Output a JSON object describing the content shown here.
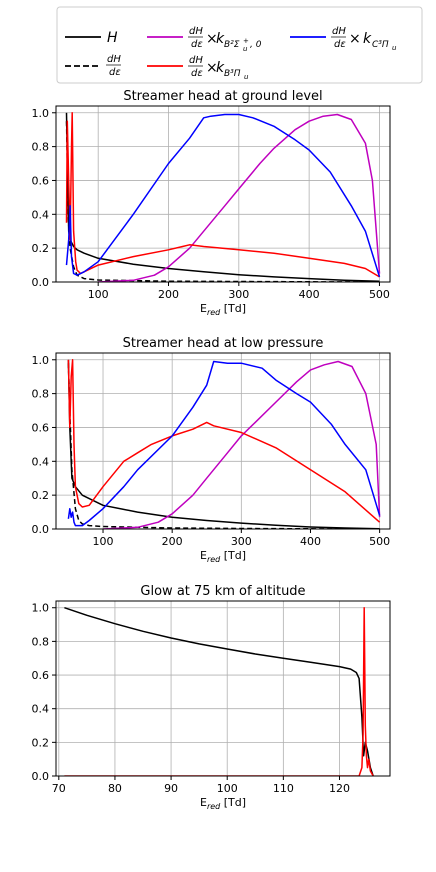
{
  "legend": {
    "entries": [
      {
        "label": "H",
        "color": "#000000",
        "dash": "solid"
      },
      {
        "label": "dH/dε",
        "color": "#000000",
        "dash": "dashed"
      },
      {
        "label": "dH/dε × k B²Σu⁺, 0",
        "color": "#bf00bf",
        "dash": "solid"
      },
      {
        "label": "dH/dε × k B³Πu",
        "color": "#ff0000",
        "dash": "solid"
      },
      {
        "label": "dH/dε × k C³Πu",
        "color": "#0000ff",
        "dash": "solid"
      }
    ]
  },
  "chart_data": [
    {
      "type": "line",
      "title": "Streamer head at ground level",
      "xlabel": "E_red [Td]",
      "ylabel": "",
      "xlim": [
        40,
        515
      ],
      "ylim": [
        0,
        1.04
      ],
      "xticks": [
        "100",
        "200",
        "300",
        "400",
        "500"
      ],
      "yticks": [
        "0.0",
        "0.2",
        "0.4",
        "0.6",
        "0.8",
        "1.0"
      ],
      "xtick_values": [
        100,
        200,
        300,
        400,
        500
      ],
      "ytick_values": [
        0,
        0.2,
        0.4,
        0.6,
        0.8,
        1.0
      ],
      "grid": true,
      "series": [
        {
          "name": "H",
          "color": "#000000",
          "dash": "solid",
          "x": [
            55,
            57,
            58,
            60,
            65,
            70,
            80,
            100,
            150,
            200,
            250,
            300,
            350,
            400,
            450,
            500
          ],
          "y": [
            1.0,
            0.5,
            0.3,
            0.25,
            0.21,
            0.19,
            0.17,
            0.14,
            0.105,
            0.08,
            0.06,
            0.043,
            0.03,
            0.02,
            0.01,
            0.004
          ]
        },
        {
          "name": "dH/dε",
          "color": "#000000",
          "dash": "dashed",
          "x": [
            55,
            56,
            57,
            60,
            65,
            70,
            80,
            100,
            150,
            200,
            300,
            400,
            500
          ],
          "y": [
            0.95,
            0.7,
            0.4,
            0.2,
            0.09,
            0.04,
            0.02,
            0.012,
            0.008,
            0.005,
            0.003,
            0.001,
            0.0
          ]
        },
        {
          "name": "dH/dε × k B²Σu⁺, 0",
          "color": "#bf00bf",
          "dash": "solid",
          "x": [
            100,
            150,
            180,
            200,
            230,
            250,
            280,
            300,
            330,
            350,
            380,
            400,
            420,
            440,
            460,
            480,
            490,
            500
          ],
          "y": [
            0.0,
            0.01,
            0.04,
            0.09,
            0.2,
            0.3,
            0.45,
            0.55,
            0.7,
            0.79,
            0.9,
            0.95,
            0.98,
            0.99,
            0.96,
            0.82,
            0.6,
            0.05
          ]
        },
        {
          "name": "dH/dε × k B³Πu",
          "color": "#ff0000",
          "dash": "solid",
          "x": [
            55,
            56,
            58,
            60,
            62,
            63,
            65,
            68,
            70,
            75,
            80,
            100,
            150,
            200,
            220,
            230,
            250,
            300,
            350,
            400,
            450,
            480,
            500
          ],
          "y": [
            0.35,
            0.95,
            0.6,
            0.25,
            0.8,
            1.0,
            0.3,
            0.12,
            0.07,
            0.05,
            0.06,
            0.1,
            0.15,
            0.19,
            0.21,
            0.22,
            0.21,
            0.19,
            0.17,
            0.14,
            0.11,
            0.08,
            0.03
          ]
        },
        {
          "name": "dH/dε × k C³Πu",
          "color": "#0000ff",
          "dash": "solid",
          "x": [
            55,
            58,
            60,
            62,
            65,
            70,
            80,
            100,
            150,
            200,
            230,
            250,
            260,
            280,
            300,
            320,
            350,
            380,
            400,
            430,
            460,
            480,
            500
          ],
          "y": [
            0.1,
            0.25,
            0.45,
            0.15,
            0.05,
            0.04,
            0.06,
            0.12,
            0.4,
            0.7,
            0.85,
            0.97,
            0.98,
            0.99,
            0.99,
            0.97,
            0.92,
            0.84,
            0.78,
            0.65,
            0.45,
            0.3,
            0.03
          ]
        }
      ]
    },
    {
      "type": "line",
      "title": "Streamer head at low pressure",
      "xlabel": "E_red [Td]",
      "ylabel": "",
      "xlim": [
        32,
        515
      ],
      "ylim": [
        0,
        1.04
      ],
      "xticks": [
        "100",
        "200",
        "300",
        "400",
        "500"
      ],
      "yticks": [
        "0.0",
        "0.2",
        "0.4",
        "0.6",
        "0.8",
        "1.0"
      ],
      "xtick_values": [
        100,
        200,
        300,
        400,
        500
      ],
      "ytick_values": [
        0,
        0.2,
        0.4,
        0.6,
        0.8,
        1.0
      ],
      "grid": true,
      "series": [
        {
          "name": "H",
          "color": "#000000",
          "dash": "solid",
          "x": [
            50,
            52,
            55,
            60,
            70,
            100,
            150,
            200,
            250,
            300,
            350,
            400,
            450,
            500
          ],
          "y": [
            1.0,
            0.6,
            0.3,
            0.25,
            0.2,
            0.14,
            0.1,
            0.07,
            0.05,
            0.035,
            0.022,
            0.012,
            0.006,
            0.002
          ]
        },
        {
          "name": "dH/dε",
          "color": "#000000",
          "dash": "dashed",
          "x": [
            50,
            52,
            55,
            60,
            65,
            70,
            80,
            100,
            150,
            200,
            300,
            400,
            500
          ],
          "y": [
            0.98,
            0.7,
            0.35,
            0.12,
            0.05,
            0.03,
            0.02,
            0.015,
            0.01,
            0.006,
            0.003,
            0.001,
            0.0
          ]
        },
        {
          "name": "dH/dε × k B²Σu⁺, 0",
          "color": "#bf00bf",
          "dash": "solid",
          "x": [
            100,
            150,
            180,
            200,
            230,
            250,
            280,
            300,
            320,
            350,
            380,
            400,
            420,
            440,
            460,
            480,
            495,
            500
          ],
          "y": [
            0.0,
            0.01,
            0.04,
            0.09,
            0.2,
            0.3,
            0.45,
            0.55,
            0.63,
            0.75,
            0.87,
            0.94,
            0.97,
            0.99,
            0.96,
            0.8,
            0.5,
            0.07
          ]
        },
        {
          "name": "dH/dε × k B³Πu",
          "color": "#ff0000",
          "dash": "solid",
          "x": [
            50,
            52,
            54,
            56,
            58,
            60,
            65,
            70,
            80,
            100,
            130,
            150,
            170,
            200,
            230,
            250,
            260,
            300,
            350,
            400,
            450,
            500
          ],
          "y": [
            1.0,
            0.6,
            0.9,
            1.0,
            0.5,
            0.25,
            0.15,
            0.13,
            0.14,
            0.25,
            0.4,
            0.45,
            0.5,
            0.55,
            0.59,
            0.63,
            0.61,
            0.57,
            0.48,
            0.35,
            0.22,
            0.04
          ]
        },
        {
          "name": "dH/dε × k C³Πu",
          "color": "#0000ff",
          "dash": "solid",
          "x": [
            50,
            52,
            54,
            56,
            58,
            60,
            70,
            80,
            100,
            130,
            150,
            200,
            230,
            250,
            260,
            280,
            300,
            330,
            350,
            380,
            400,
            430,
            450,
            480,
            500
          ],
          "y": [
            0.06,
            0.12,
            0.07,
            0.1,
            0.04,
            0.02,
            0.02,
            0.05,
            0.12,
            0.25,
            0.35,
            0.55,
            0.72,
            0.85,
            0.99,
            0.98,
            0.98,
            0.95,
            0.88,
            0.8,
            0.75,
            0.62,
            0.5,
            0.35,
            0.08
          ]
        }
      ]
    },
    {
      "type": "line",
      "title": "Glow at 75 km of altitude",
      "xlabel": "E_red [Td]",
      "ylabel": "",
      "xlim": [
        69.5,
        129
      ],
      "ylim": [
        0,
        1.04
      ],
      "xticks": [
        "70",
        "80",
        "90",
        "100",
        "110",
        "120"
      ],
      "yticks": [
        "0.0",
        "0.2",
        "0.4",
        "0.6",
        "0.8",
        "1.0"
      ],
      "xtick_values": [
        70,
        80,
        90,
        100,
        110,
        120
      ],
      "ytick_values": [
        0,
        0.2,
        0.4,
        0.6,
        0.8,
        1.0
      ],
      "grid": true,
      "series": [
        {
          "name": "H",
          "color": "#000000",
          "dash": "solid",
          "x": [
            71,
            75,
            80,
            85,
            90,
            95,
            100,
            105,
            110,
            115,
            120,
            122,
            123,
            123.5,
            124,
            124.3,
            124.6,
            125,
            125.5,
            126
          ],
          "y": [
            1.0,
            0.955,
            0.905,
            0.86,
            0.82,
            0.785,
            0.755,
            0.725,
            0.7,
            0.675,
            0.65,
            0.635,
            0.615,
            0.58,
            0.35,
            0.12,
            0.2,
            0.15,
            0.05,
            0.0
          ]
        },
        {
          "name": "dH/dε × k B³Πu",
          "color": "#ff0000",
          "dash": "solid",
          "x": [
            71,
            100,
            120,
            123.5,
            124,
            124.2,
            124.4,
            124.6,
            124.8,
            125,
            125.2,
            125.5,
            126
          ],
          "y": [
            0.0,
            0.0,
            0.0,
            0.0,
            0.05,
            0.25,
            1.0,
            0.3,
            0.12,
            0.05,
            0.1,
            0.03,
            0.0
          ]
        }
      ]
    }
  ]
}
